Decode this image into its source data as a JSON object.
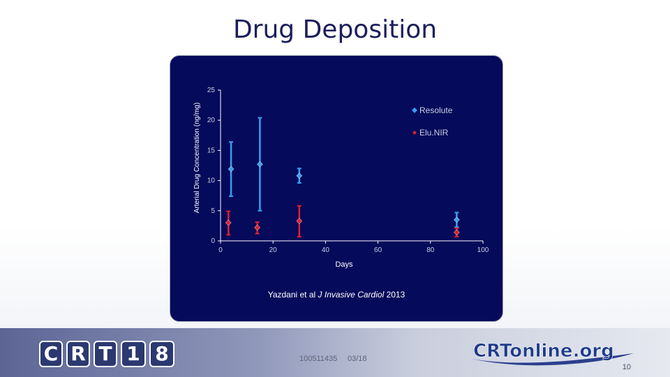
{
  "slide": {
    "title": "Drug Deposition",
    "citation_prefix": "Yazdani et al ",
    "citation_journal": "J Invasive Cardiol",
    "citation_year": " 2013",
    "footer_code": "100511435",
    "footer_date": "03/18",
    "page_number": "10",
    "logo_letters": [
      "C",
      "R",
      "T",
      "1",
      "8"
    ],
    "site_logo": {
      "primary": "CRTonline",
      "suffix": ".org"
    }
  },
  "colors": {
    "panel_bg": "#050a5a",
    "resolute": "#3a9ef0",
    "elunir": "#e0202c",
    "axis": "#ffffff",
    "title": "#1b1e5c"
  },
  "chart_data": {
    "type": "scatter",
    "xlabel": "Days",
    "ylabel": "Arterial Drug Concentration (ng/mg)",
    "xlim": [
      0,
      100
    ],
    "ylim": [
      0,
      25
    ],
    "xticks": [
      0,
      20,
      40,
      60,
      80,
      100
    ],
    "yticks": [
      0,
      5,
      10,
      15,
      20,
      25
    ],
    "grid": false,
    "legend_position": "top-right",
    "series": [
      {
        "name": "Resolute",
        "color": "#3a9ef0",
        "marker": "diamond",
        "points": [
          {
            "x": 4,
            "y": 11.9,
            "low": 7.4,
            "high": 16.4
          },
          {
            "x": 15,
            "y": 12.7,
            "low": 5.0,
            "high": 20.4
          },
          {
            "x": 30,
            "y": 10.8,
            "low": 9.6,
            "high": 12.0
          },
          {
            "x": 90,
            "y": 3.5,
            "low": 2.3,
            "high": 4.7
          }
        ]
      },
      {
        "name": "Elu.NIR",
        "color": "#e0202c",
        "marker": "diamond",
        "points": [
          {
            "x": 3,
            "y": 3.0,
            "low": 1.0,
            "high": 4.9
          },
          {
            "x": 14,
            "y": 2.2,
            "low": 1.2,
            "high": 3.1
          },
          {
            "x": 30,
            "y": 3.3,
            "low": 0.7,
            "high": 5.8
          },
          {
            "x": 90,
            "y": 1.4,
            "low": 0.7,
            "high": 2.1
          }
        ]
      }
    ]
  }
}
